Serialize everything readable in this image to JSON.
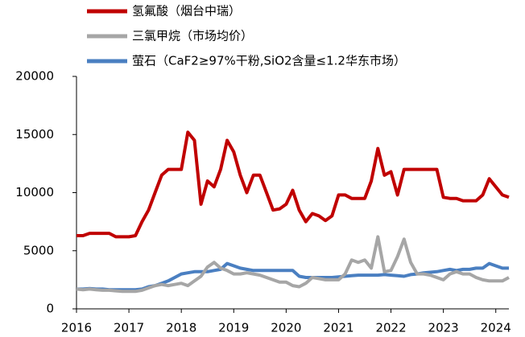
{
  "chart_data": {
    "type": "line",
    "x": [
      2016,
      2016.125,
      2016.25,
      2016.375,
      2016.5,
      2016.625,
      2016.75,
      2016.875,
      2017,
      2017.125,
      2017.25,
      2017.375,
      2017.5,
      2017.625,
      2017.75,
      2017.875,
      2018,
      2018.125,
      2018.25,
      2018.375,
      2018.5,
      2018.625,
      2018.75,
      2018.875,
      2019,
      2019.125,
      2019.25,
      2019.375,
      2019.5,
      2019.625,
      2019.75,
      2019.875,
      2020,
      2020.125,
      2020.25,
      2020.375,
      2020.5,
      2020.625,
      2020.75,
      2020.875,
      2021,
      2021.125,
      2021.25,
      2021.375,
      2021.5,
      2021.625,
      2021.75,
      2021.875,
      2022,
      2022.125,
      2022.25,
      2022.375,
      2022.5,
      2022.625,
      2022.75,
      2022.875,
      2023,
      2023.125,
      2023.25,
      2023.375,
      2023.5,
      2023.625,
      2023.75,
      2023.875,
      2024,
      2024.125,
      2024.25
    ],
    "series": [
      {
        "name": "氢氟酸（烟台中瑞）",
        "color": "#c00000",
        "values": [
          6300,
          6300,
          6500,
          6500,
          6500,
          6500,
          6200,
          6200,
          6200,
          6300,
          7500,
          8500,
          10000,
          11500,
          12000,
          12000,
          12000,
          15200,
          14500,
          9000,
          11000,
          10500,
          12000,
          14500,
          13500,
          11500,
          10000,
          11500,
          11500,
          10000,
          8500,
          8600,
          9000,
          10200,
          8500,
          7500,
          8200,
          8000,
          7600,
          8000,
          9800,
          9800,
          9500,
          9500,
          9500,
          11000,
          13800,
          11500,
          11800,
          9800,
          12000,
          12000,
          12000,
          12000,
          12000,
          12000,
          9600,
          9500,
          9500,
          9300,
          9300,
          9300,
          9800,
          11200,
          10500,
          9800,
          9600
        ]
      },
      {
        "name": "三氯甲烷（市场均价）",
        "color": "#a6a6a6",
        "values": [
          1700,
          1650,
          1700,
          1650,
          1600,
          1600,
          1550,
          1500,
          1500,
          1500,
          1600,
          1800,
          2000,
          2100,
          2000,
          2100,
          2200,
          2000,
          2400,
          2800,
          3600,
          4000,
          3500,
          3300,
          3000,
          3000,
          3100,
          3000,
          2900,
          2700,
          2500,
          2300,
          2300,
          2000,
          1900,
          2200,
          2700,
          2600,
          2500,
          2500,
          2500,
          3000,
          4200,
          4000,
          4200,
          3500,
          6200,
          3200,
          3300,
          4500,
          6000,
          4000,
          3000,
          3000,
          2900,
          2700,
          2500,
          3000,
          3200,
          3000,
          3000,
          2700,
          2500,
          2400,
          2400,
          2400,
          2700
        ]
      },
      {
        "name": "萤石（CaF2≥97%干粉,SiO2含量≤1.2华东市场）",
        "color": "#4a7fc1",
        "values": [
          1700,
          1700,
          1750,
          1700,
          1700,
          1650,
          1650,
          1650,
          1650,
          1650,
          1700,
          1900,
          2000,
          2200,
          2400,
          2700,
          3000,
          3100,
          3200,
          3200,
          3200,
          3300,
          3400,
          3900,
          3700,
          3500,
          3400,
          3300,
          3300,
          3300,
          3300,
          3300,
          3300,
          3300,
          2800,
          2700,
          2700,
          2700,
          2700,
          2700,
          2750,
          2800,
          2850,
          2900,
          2900,
          2900,
          2900,
          2950,
          2900,
          2850,
          2800,
          2950,
          3000,
          3100,
          3150,
          3200,
          3300,
          3400,
          3300,
          3400,
          3400,
          3500,
          3500,
          3900,
          3700,
          3500,
          3500
        ]
      }
    ],
    "xlim": [
      2016,
      2024.25
    ],
    "xticks": [
      2016,
      2017,
      2018,
      2019,
      2020,
      2021,
      2022,
      2023,
      2024
    ],
    "ylim": [
      0,
      20000
    ],
    "yticks": [
      0,
      5000,
      10000,
      15000,
      20000
    ],
    "grid": false
  }
}
